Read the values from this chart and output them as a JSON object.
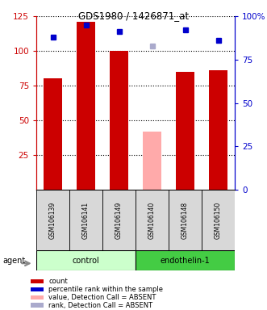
{
  "title": "GDS1980 / 1426871_at",
  "samples": [
    "GSM106139",
    "GSM106141",
    "GSM106149",
    "GSM106140",
    "GSM106148",
    "GSM106150"
  ],
  "groups": [
    "control",
    "control",
    "control",
    "endothelin-1",
    "endothelin-1",
    "endothelin-1"
  ],
  "count_values": [
    80,
    121,
    100,
    null,
    85,
    86
  ],
  "count_absent_values": [
    null,
    null,
    null,
    42,
    null,
    null
  ],
  "rank_values": [
    88,
    95,
    91,
    null,
    92,
    86
  ],
  "rank_absent_values": [
    null,
    null,
    null,
    83,
    null,
    null
  ],
  "bar_width": 0.55,
  "ylim_left": [
    0,
    125
  ],
  "ylim_right": [
    0,
    100
  ],
  "yticks_left": [
    25,
    50,
    75,
    100,
    125
  ],
  "yticks_right": [
    0,
    25,
    50,
    75,
    100
  ],
  "ytick_labels_right": [
    "0",
    "25",
    "50",
    "75",
    "100%"
  ],
  "color_count": "#cc0000",
  "color_count_absent": "#ffaaaa",
  "color_rank": "#0000cc",
  "color_rank_absent": "#aaaacc",
  "group_colors": {
    "control": "#ccffcc",
    "endothelin-1": "#44cc44"
  },
  "legend_items": [
    {
      "color": "#cc0000",
      "label": "count"
    },
    {
      "color": "#0000cc",
      "label": "percentile rank within the sample"
    },
    {
      "color": "#ffaaaa",
      "label": "value, Detection Call = ABSENT"
    },
    {
      "color": "#aaaacc",
      "label": "rank, Detection Call = ABSENT"
    }
  ],
  "agent_label": "agent",
  "bg_color": "#d8d8d8"
}
